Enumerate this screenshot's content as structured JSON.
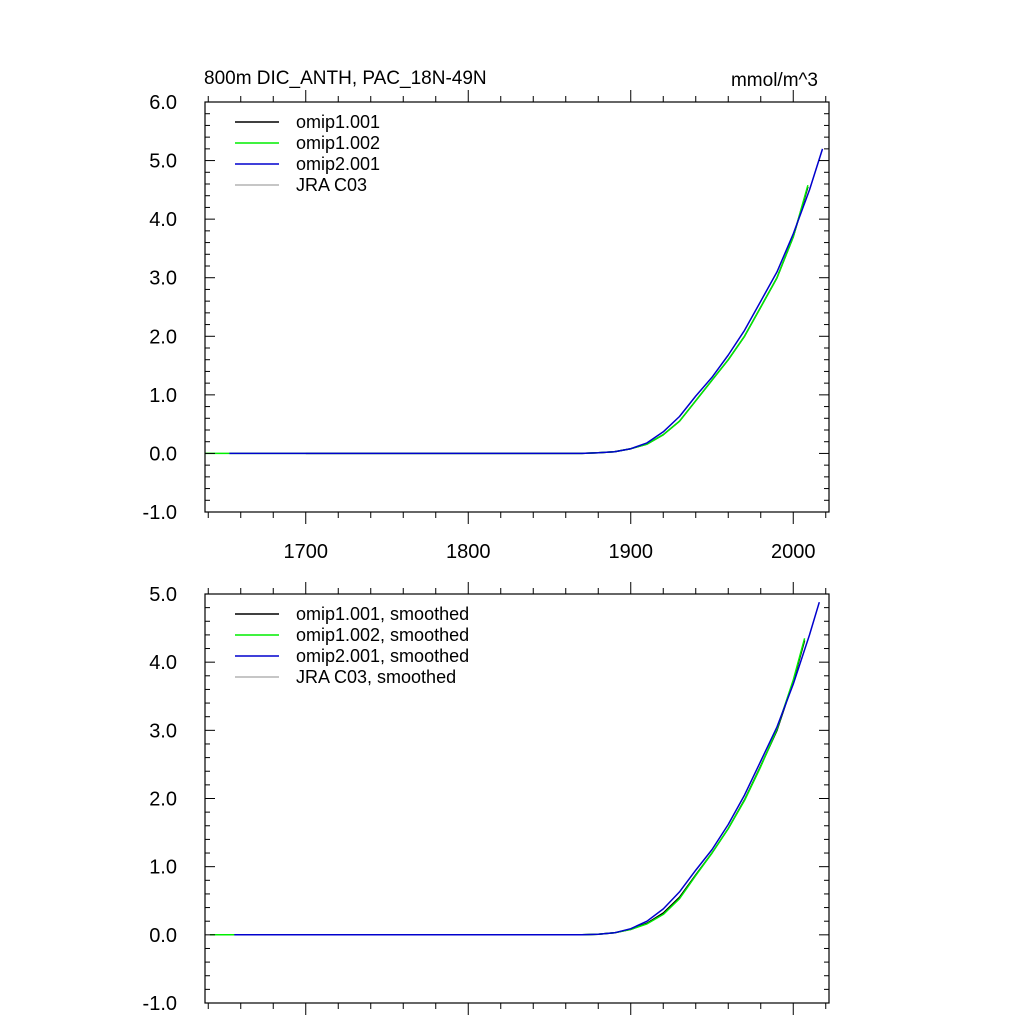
{
  "figure": {
    "title": "800m DIC_ANTH, PAC_18N-49N",
    "units": "mmol/m^3"
  },
  "chart_data": [
    {
      "type": "line",
      "title": "800m DIC_ANTH, PAC_18N-49N",
      "units": "mmol/m^3",
      "xlim": [
        1638,
        2022
      ],
      "ylim": [
        -1.0,
        6.0
      ],
      "x_ticks": [
        1700,
        1800,
        1900,
        2000
      ],
      "x_tick_labels": [
        "1700",
        "1800",
        "1900",
        "2000"
      ],
      "y_ticks": [
        -1.0,
        0.0,
        1.0,
        2.0,
        3.0,
        4.0,
        5.0,
        6.0
      ],
      "y_tick_labels": [
        "-1.0",
        "0.0",
        "1.0",
        "2.0",
        "3.0",
        "4.0",
        "5.0",
        "6.0"
      ],
      "grid": false,
      "legend_position": "top-left",
      "series": [
        {
          "name": "omip1.001",
          "color": "#000000",
          "x": [
            1700,
            1750,
            1800,
            1850,
            1870,
            1880,
            1890,
            1900,
            1910,
            1920,
            1930,
            1940,
            1950,
            1960,
            1970,
            1980,
            1990,
            2000,
            2009
          ],
          "y": [
            0.0,
            0.0,
            0.0,
            0.0,
            0.0,
            0.01,
            0.03,
            0.08,
            0.16,
            0.32,
            0.55,
            0.9,
            1.25,
            1.6,
            2.0,
            2.5,
            3.0,
            3.7,
            4.55
          ]
        },
        {
          "name": "omip1.002",
          "color": "#00ee00",
          "x": [
            1638,
            1700,
            1750,
            1800,
            1850,
            1870,
            1880,
            1890,
            1900,
            1910,
            1920,
            1930,
            1940,
            1950,
            1960,
            1970,
            1980,
            1990,
            2000,
            2009
          ],
          "y": [
            0.0,
            0.0,
            0.0,
            0.0,
            0.0,
            0.0,
            0.01,
            0.03,
            0.08,
            0.16,
            0.32,
            0.55,
            0.9,
            1.25,
            1.6,
            2.0,
            2.5,
            3.0,
            3.7,
            4.58
          ]
        },
        {
          "name": "omip2.001",
          "color": "#0000cd",
          "x": [
            1653,
            1700,
            1750,
            1800,
            1850,
            1870,
            1880,
            1890,
            1900,
            1910,
            1920,
            1930,
            1940,
            1950,
            1960,
            1970,
            1980,
            1990,
            2000,
            2010,
            2018
          ],
          "y": [
            0.0,
            0.0,
            0.0,
            0.0,
            0.0,
            0.0,
            0.01,
            0.03,
            0.08,
            0.18,
            0.37,
            0.63,
            0.98,
            1.3,
            1.68,
            2.1,
            2.6,
            3.1,
            3.75,
            4.5,
            5.2
          ]
        },
        {
          "name": "JRA C03",
          "color": "#b3b3b3",
          "x": [],
          "y": []
        }
      ]
    },
    {
      "type": "line",
      "xlim": [
        1638,
        2022
      ],
      "ylim": [
        -1.0,
        5.0
      ],
      "x_ticks": [
        1700,
        1800,
        1900,
        2000
      ],
      "x_tick_labels": [],
      "y_ticks": [
        -1.0,
        0.0,
        1.0,
        2.0,
        3.0,
        4.0,
        5.0
      ],
      "y_tick_labels": [
        "-1.0",
        "0.0",
        "1.0",
        "2.0",
        "3.0",
        "4.0",
        "5.0"
      ],
      "grid": false,
      "legend_position": "top-left",
      "series": [
        {
          "name": "omip1.001, smoothed",
          "color": "#000000",
          "x": [
            1700,
            1750,
            1800,
            1850,
            1870,
            1880,
            1890,
            1900,
            1910,
            1920,
            1930,
            1940,
            1950,
            1960,
            1970,
            1980,
            1990,
            2000,
            2007
          ],
          "y": [
            0.0,
            0.0,
            0.0,
            0.0,
            0.0,
            0.01,
            0.03,
            0.08,
            0.17,
            0.32,
            0.55,
            0.88,
            1.2,
            1.56,
            1.98,
            2.48,
            3.0,
            3.72,
            4.32
          ]
        },
        {
          "name": "omip1.002, smoothed",
          "color": "#00ee00",
          "x": [
            1641,
            1700,
            1750,
            1800,
            1850,
            1870,
            1880,
            1890,
            1900,
            1910,
            1920,
            1930,
            1940,
            1950,
            1960,
            1970,
            1980,
            1990,
            2000,
            2007
          ],
          "y": [
            0.0,
            0.0,
            0.0,
            0.0,
            0.0,
            0.0,
            0.01,
            0.03,
            0.08,
            0.16,
            0.3,
            0.53,
            0.87,
            1.2,
            1.56,
            1.97,
            2.47,
            3.02,
            3.74,
            4.35
          ]
        },
        {
          "name": "omip2.001, smoothed",
          "color": "#0000cd",
          "x": [
            1656,
            1700,
            1750,
            1800,
            1850,
            1870,
            1880,
            1890,
            1900,
            1910,
            1920,
            1930,
            1940,
            1950,
            1960,
            1970,
            1980,
            1990,
            2000,
            2010,
            2016
          ],
          "y": [
            0.0,
            0.0,
            0.0,
            0.0,
            0.0,
            0.0,
            0.01,
            0.03,
            0.09,
            0.2,
            0.38,
            0.63,
            0.95,
            1.25,
            1.62,
            2.05,
            2.55,
            3.05,
            3.68,
            4.4,
            4.88
          ]
        },
        {
          "name": "JRA C03, smoothed",
          "color": "#b3b3b3",
          "x": [],
          "y": []
        }
      ]
    }
  ]
}
